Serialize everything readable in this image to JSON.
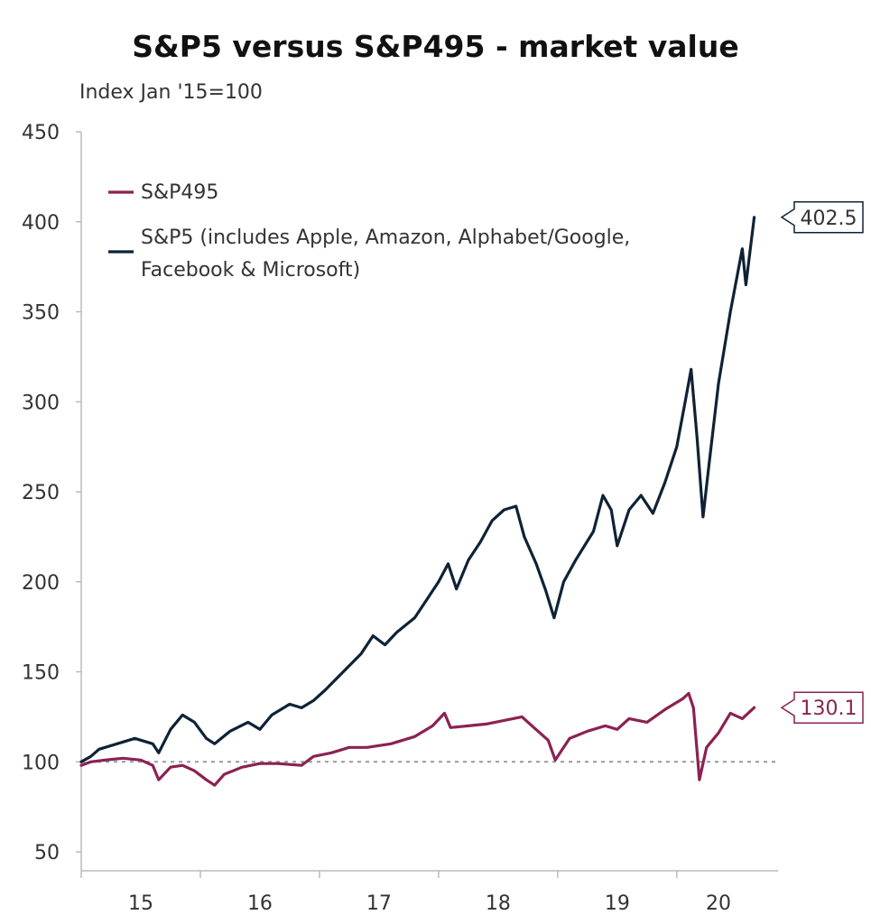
{
  "chart_data": {
    "type": "line",
    "title": "S&P5 versus S&P495 - market value",
    "subtitle": "Index Jan '15=100",
    "xlabel": "",
    "ylabel": "",
    "ylim": [
      50,
      450
    ],
    "xlim": [
      2015.0,
      2020.85
    ],
    "y_ticks": [
      50,
      100,
      150,
      200,
      250,
      300,
      350,
      400,
      450
    ],
    "x_tick_labels": [
      {
        "label": "15",
        "x": 2015.5
      },
      {
        "label": "16",
        "x": 2016.5
      },
      {
        "label": "17",
        "x": 2017.5
      },
      {
        "label": "18",
        "x": 2018.5
      },
      {
        "label": "19",
        "x": 2019.5
      },
      {
        "label": "20",
        "x": 2020.35
      }
    ],
    "x_year_boundaries": [
      2015,
      2016,
      2017,
      2018,
      2019,
      2020
    ],
    "reference_line": {
      "y": 100,
      "style": "dotted"
    },
    "legend_position": "top-left",
    "series": [
      {
        "name": "S&P495",
        "color": "#8b2252",
        "end_label": "130.1",
        "points": [
          [
            2015.0,
            98
          ],
          [
            2015.08,
            100
          ],
          [
            2015.2,
            101
          ],
          [
            2015.35,
            102
          ],
          [
            2015.5,
            101
          ],
          [
            2015.6,
            98
          ],
          [
            2015.65,
            90
          ],
          [
            2015.75,
            97
          ],
          [
            2015.85,
            98
          ],
          [
            2015.95,
            95
          ],
          [
            2016.05,
            90
          ],
          [
            2016.12,
            87
          ],
          [
            2016.2,
            93
          ],
          [
            2016.35,
            97
          ],
          [
            2016.5,
            99
          ],
          [
            2016.65,
            99
          ],
          [
            2016.85,
            98
          ],
          [
            2016.95,
            103
          ],
          [
            2017.1,
            105
          ],
          [
            2017.25,
            108
          ],
          [
            2017.4,
            108
          ],
          [
            2017.6,
            110
          ],
          [
            2017.8,
            114
          ],
          [
            2017.95,
            120
          ],
          [
            2018.05,
            127
          ],
          [
            2018.1,
            119
          ],
          [
            2018.25,
            120
          ],
          [
            2018.4,
            121
          ],
          [
            2018.55,
            123
          ],
          [
            2018.7,
            125
          ],
          [
            2018.8,
            119
          ],
          [
            2018.92,
            112
          ],
          [
            2018.98,
            101
          ],
          [
            2019.1,
            113
          ],
          [
            2019.25,
            117
          ],
          [
            2019.4,
            120
          ],
          [
            2019.5,
            118
          ],
          [
            2019.6,
            124
          ],
          [
            2019.75,
            122
          ],
          [
            2019.9,
            129
          ],
          [
            2020.05,
            135
          ],
          [
            2020.1,
            138
          ],
          [
            2020.14,
            130
          ],
          [
            2020.19,
            90
          ],
          [
            2020.25,
            108
          ],
          [
            2020.35,
            116
          ],
          [
            2020.45,
            127
          ],
          [
            2020.55,
            124
          ],
          [
            2020.65,
            130.1
          ]
        ]
      },
      {
        "name": "S&P5 (includes Apple, Amazon, Alphabet/Google, Facebook & Microsoft)",
        "color": "#0f2235",
        "end_label": "402.5",
        "points": [
          [
            2015.0,
            100
          ],
          [
            2015.08,
            103
          ],
          [
            2015.15,
            107
          ],
          [
            2015.3,
            110
          ],
          [
            2015.45,
            113
          ],
          [
            2015.6,
            110
          ],
          [
            2015.65,
            105
          ],
          [
            2015.75,
            118
          ],
          [
            2015.85,
            126
          ],
          [
            2015.95,
            122
          ],
          [
            2016.05,
            113
          ],
          [
            2016.12,
            110
          ],
          [
            2016.25,
            117
          ],
          [
            2016.4,
            122
          ],
          [
            2016.5,
            118
          ],
          [
            2016.6,
            126
          ],
          [
            2016.75,
            132
          ],
          [
            2016.85,
            130
          ],
          [
            2016.95,
            134
          ],
          [
            2017.05,
            140
          ],
          [
            2017.2,
            150
          ],
          [
            2017.35,
            160
          ],
          [
            2017.45,
            170
          ],
          [
            2017.55,
            165
          ],
          [
            2017.65,
            172
          ],
          [
            2017.8,
            180
          ],
          [
            2017.9,
            190
          ],
          [
            2018.0,
            200
          ],
          [
            2018.08,
            210
          ],
          [
            2018.15,
            196
          ],
          [
            2018.25,
            212
          ],
          [
            2018.35,
            222
          ],
          [
            2018.45,
            234
          ],
          [
            2018.55,
            240
          ],
          [
            2018.65,
            242
          ],
          [
            2018.72,
            225
          ],
          [
            2018.82,
            210
          ],
          [
            2018.9,
            195
          ],
          [
            2018.97,
            180
          ],
          [
            2019.05,
            200
          ],
          [
            2019.15,
            212
          ],
          [
            2019.3,
            228
          ],
          [
            2019.38,
            248
          ],
          [
            2019.45,
            240
          ],
          [
            2019.5,
            220
          ],
          [
            2019.6,
            240
          ],
          [
            2019.7,
            248
          ],
          [
            2019.8,
            238
          ],
          [
            2019.9,
            255
          ],
          [
            2020.0,
            275
          ],
          [
            2020.07,
            300
          ],
          [
            2020.12,
            318
          ],
          [
            2020.17,
            280
          ],
          [
            2020.22,
            236
          ],
          [
            2020.27,
            265
          ],
          [
            2020.35,
            310
          ],
          [
            2020.45,
            350
          ],
          [
            2020.55,
            385
          ],
          [
            2020.58,
            365
          ],
          [
            2020.65,
            402.5
          ]
        ]
      }
    ]
  }
}
